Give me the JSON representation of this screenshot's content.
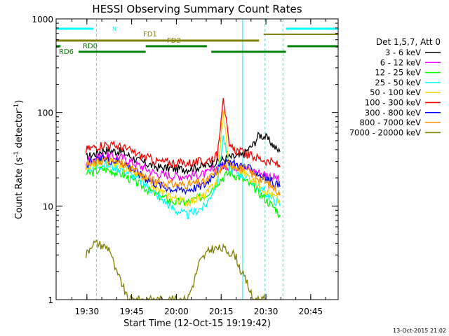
{
  "chart_data": {
    "type": "line",
    "title": "HESSI Observing Summary Count Rates",
    "xlabel": "Start Time (12-Oct-15 19:19:42)",
    "ylabel_prefix": "Count Rate (s",
    "ylabel_sup1": "-1",
    "ylabel_mid": " detector",
    "ylabel_sup2": "-1",
    "ylabel_suffix": ")",
    "y_scale": "log",
    "ylim": [
      1,
      1000
    ],
    "xlim_minutes": [
      0,
      76
    ],
    "x_tick_labels": [
      "19:30",
      "19:45",
      "20:00",
      "20:15",
      "20:30",
      "20:45"
    ],
    "x_tick_minutes": [
      10.3,
      25.3,
      40.3,
      55.3,
      70.3,
      85.3
    ],
    "y_tick_labels": [
      "1",
      "10",
      "100",
      "1000"
    ],
    "y_tick_values": [
      1,
      10,
      100,
      1000
    ],
    "legend_title": "Det 1,5,7, Att 0",
    "series": [
      {
        "name": "3 - 6 keV",
        "color": "#000000",
        "minutes": [
          10,
          16,
          22,
          28,
          34,
          40,
          44,
          50,
          54,
          58,
          62,
          66,
          68,
          70,
          72,
          74,
          75
        ],
        "values": [
          33,
          40,
          38,
          30,
          26,
          25,
          25,
          27,
          30,
          33,
          34,
          45,
          58,
          55,
          48,
          40,
          38
        ]
      },
      {
        "name": "6 - 12 keV",
        "color": "#ff00ff",
        "minutes": [
          10,
          16,
          22,
          28,
          34,
          40,
          44,
          50,
          54,
          58,
          62,
          66,
          70,
          74,
          75
        ],
        "values": [
          30,
          35,
          33,
          27,
          22,
          21,
          21,
          22,
          26,
          27,
          26,
          24,
          22,
          20,
          18
        ]
      },
      {
        "name": "12 - 25 keV",
        "color": "#00ff00",
        "minutes": [
          10,
          16,
          22,
          28,
          34,
          40,
          44,
          50,
          54,
          58,
          62,
          66,
          70,
          74,
          75
        ],
        "values": [
          22,
          25,
          22,
          17,
          13,
          11,
          11,
          13,
          18,
          23,
          20,
          16,
          12,
          9,
          8
        ]
      },
      {
        "name": "25 - 50 keV",
        "color": "#00ffff",
        "minutes": [
          10,
          16,
          22,
          28,
          34,
          40,
          44,
          50,
          54,
          56,
          58,
          62,
          66,
          70,
          74,
          75
        ],
        "values": [
          25,
          28,
          25,
          19,
          13,
          9,
          8,
          10,
          18,
          55,
          26,
          22,
          18,
          14,
          11,
          10
        ]
      },
      {
        "name": "50 - 100 keV",
        "color": "#ffd700",
        "minutes": [
          10,
          16,
          22,
          28,
          34,
          40,
          44,
          50,
          54,
          56,
          58,
          62,
          66,
          70,
          74,
          75
        ],
        "values": [
          26,
          30,
          27,
          21,
          15,
          12,
          11,
          13,
          19,
          100,
          28,
          24,
          19,
          15,
          12,
          11
        ]
      },
      {
        "name": "100 - 300 keV",
        "color": "#ff0000",
        "minutes": [
          10,
          16,
          22,
          28,
          34,
          40,
          44,
          50,
          54,
          56,
          58,
          62,
          66,
          70,
          74,
          75
        ],
        "values": [
          40,
          46,
          43,
          35,
          30,
          29,
          29,
          30,
          35,
          155,
          42,
          38,
          34,
          31,
          28,
          26
        ]
      },
      {
        "name": "300 - 800 keV",
        "color": "#0000ff",
        "minutes": [
          10,
          16,
          22,
          28,
          34,
          40,
          44,
          50,
          54,
          58,
          62,
          66,
          70,
          74,
          75
        ],
        "values": [
          28,
          32,
          30,
          22,
          17,
          15,
          15,
          17,
          25,
          30,
          27,
          24,
          20,
          17,
          16
        ]
      },
      {
        "name": "800 - 7000 keV",
        "color": "#ff8c00",
        "minutes": [
          10,
          16,
          22,
          28,
          34,
          40,
          44,
          50,
          54,
          58,
          62,
          66,
          70,
          74,
          75
        ],
        "values": [
          27,
          31,
          29,
          22,
          18,
          17,
          17,
          18,
          24,
          28,
          26,
          22,
          18,
          15,
          13
        ]
      },
      {
        "name": "7000 - 20000 keV",
        "color": "#808000",
        "minutes": [
          10,
          12,
          14,
          18,
          20,
          22,
          24,
          44,
          46,
          48,
          50,
          52,
          56,
          60,
          62,
          64,
          66,
          70
        ],
        "values": [
          3,
          4,
          4,
          3.5,
          2,
          1.5,
          1,
          1,
          1.5,
          2.5,
          3,
          3.5,
          3.5,
          3,
          2,
          1.5,
          1,
          1
        ]
      }
    ],
    "annotations": {
      "cyan_vertical_dashed_minutes": [
        13.5,
        70,
        76
      ],
      "cyan_vertical_solid_minutes": [
        0,
        62.5
      ],
      "state_bars": [
        {
          "label": "N",
          "color": "#00ffff"
        },
        {
          "label": "FD1",
          "color": "#808000"
        },
        {
          "label": "FD2",
          "color": "#808000"
        },
        {
          "label": "RD0",
          "color": "#008000"
        },
        {
          "label": "RD6",
          "color": "#008000"
        }
      ]
    },
    "footer_timestamp": "13-Oct-2015 21:02"
  }
}
